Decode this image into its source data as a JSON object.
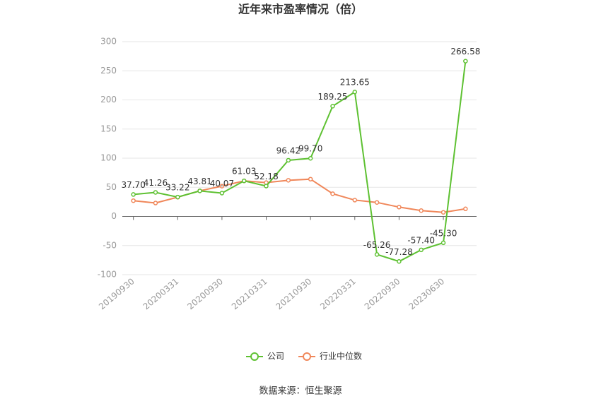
{
  "chart_data": {
    "type": "line",
    "title": "近年来市盈率情况（倍）",
    "source": "数据来源：恒生聚源",
    "categories": [
      "20190930",
      null,
      "20200331",
      null,
      "20200930",
      null,
      "20210331",
      null,
      "20210930",
      null,
      "20220331",
      null,
      "20220930",
      null,
      "20230630",
      null
    ],
    "series": [
      {
        "name": "公司",
        "color": "#5ec132",
        "values": [
          37.7,
          41.26,
          33.22,
          43.81,
          40.07,
          61.03,
          52.18,
          96.42,
          99.7,
          189.25,
          213.65,
          -65.26,
          -77.28,
          -57.4,
          -45.3,
          266.58
        ],
        "value_labels": [
          "37.70",
          "41.26",
          "33.22",
          "43.81",
          "40.07",
          "61.03",
          "52.18",
          "96.42",
          "99.70",
          "189.25",
          "213.65",
          "-65.26",
          "-77.28",
          "-57.40",
          "-45.30",
          "266.58"
        ]
      },
      {
        "name": "行业中位数",
        "color": "#f0875a",
        "values": [
          27,
          23,
          33,
          44,
          52,
          61,
          58,
          62,
          64,
          39,
          28,
          24,
          16,
          10,
          7,
          13
        ]
      }
    ],
    "ylim": [
      -100,
      300
    ],
    "yticks": [
      -100,
      -50,
      0,
      50,
      100,
      150,
      200,
      250,
      300
    ],
    "grid": true,
    "legend": "bottom"
  }
}
